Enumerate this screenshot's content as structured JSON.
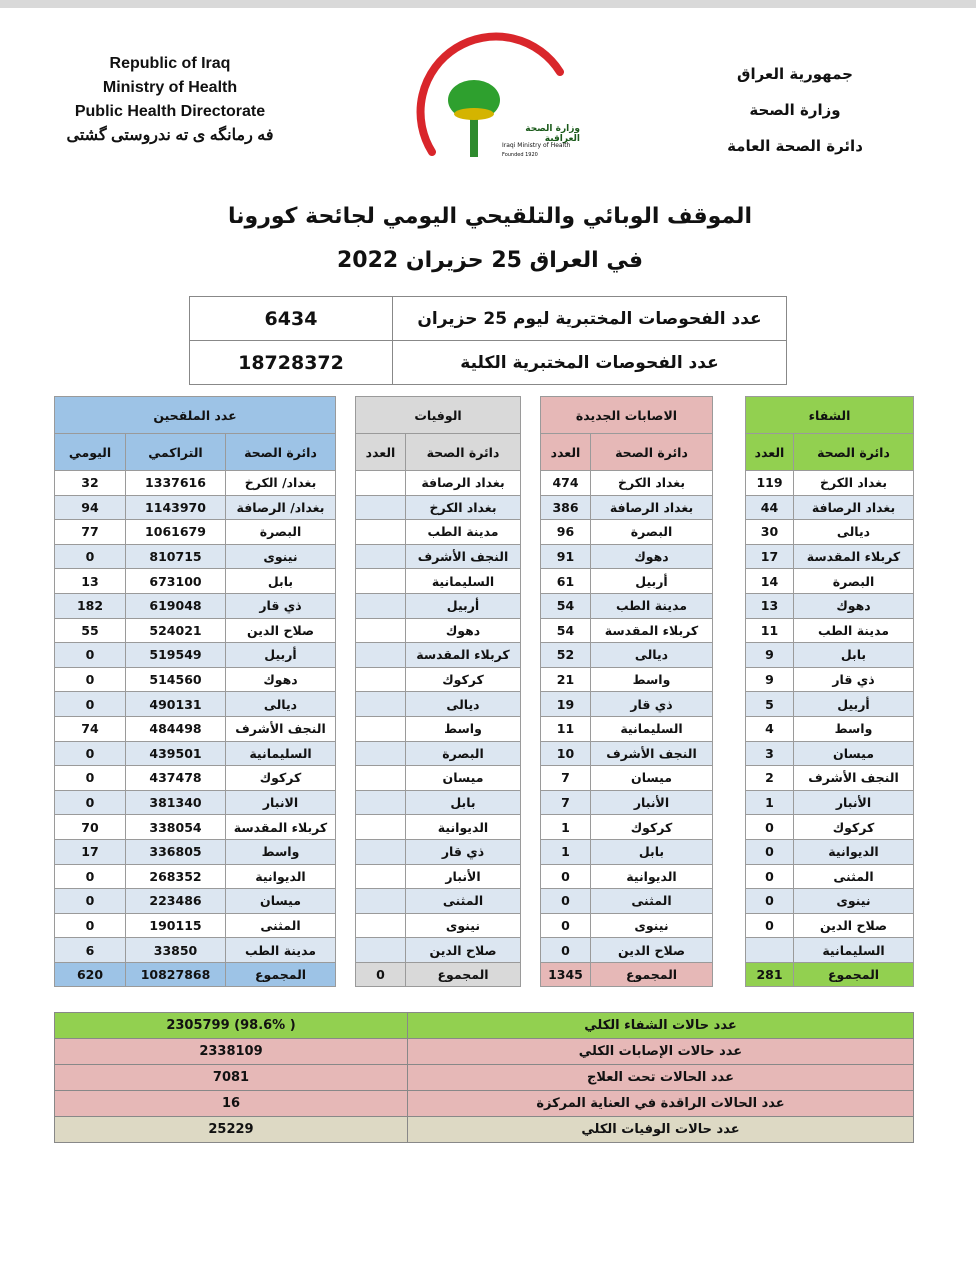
{
  "header": {
    "left": [
      "Republic of Iraq",
      "Ministry of Health",
      "Public Health Directorate",
      "فه رمانگه ى ته ندروستى گشتى"
    ],
    "right": [
      "جمهورية العراق",
      "وزارة الصحة",
      "دائرة الصحة العامة"
    ],
    "logo_text": "وزارة الصحة العراقية",
    "logo_sub": "Iraqi Ministry of Health",
    "logo_founded": "Founded 1920",
    "title1": "الموقف الوبائي والتلقيحي اليومي لجائحة كورونا",
    "title2": "في العراق  25 حزيران 2022"
  },
  "tests": [
    {
      "label": "عدد الفحوصات المختبرية  ليوم 25  حزيران",
      "value": "6434"
    },
    {
      "label": "عدد الفحوصات المختبرية الكلية",
      "value": "18728372"
    }
  ],
  "sections": {
    "vaccinated": "عدد الملقحين",
    "deaths": "الوفيات",
    "cases": "الاصابات الجديدة",
    "recovery": "الشفاء"
  },
  "cols": {
    "dept": "دائرة الصحة",
    "count": "العدد",
    "cumulative": "التراكمي",
    "daily": "اليومي"
  },
  "rows": [
    [
      "بغداد الكرخ",
      "119",
      "بغداد الكرخ",
      "474",
      "بغداد الرصافة",
      "",
      "بغداد/ الكرخ",
      "1337616",
      "32"
    ],
    [
      "بغداد الرصافة",
      "44",
      "بغداد الرصافة",
      "386",
      "بغداد الكرخ",
      "",
      "بغداد/ الرصافة",
      "1143970",
      "94"
    ],
    [
      "ديالى",
      "30",
      "البصرة",
      "96",
      "مدينة الطب",
      "",
      "البصرة",
      "1061679",
      "77"
    ],
    [
      "كربلاء المقدسة",
      "17",
      "دهوك",
      "91",
      "النجف الأشرف",
      "",
      "نينوى",
      "810715",
      "0"
    ],
    [
      "البصرة",
      "14",
      "أربيل",
      "61",
      "السليمانية",
      "",
      "بابل",
      "673100",
      "13"
    ],
    [
      "دهوك",
      "13",
      "مدينة الطب",
      "54",
      "أربيل",
      "",
      "ذي قار",
      "619048",
      "182"
    ],
    [
      "مدينة الطب",
      "11",
      "كربلاء المقدسة",
      "54",
      "دهوك",
      "",
      "صلاح الدين",
      "524021",
      "55"
    ],
    [
      "بابل",
      "9",
      "ديالى",
      "52",
      "كربلاء المقدسة",
      "",
      "أربيل",
      "519549",
      "0"
    ],
    [
      "ذي قار",
      "9",
      "واسط",
      "21",
      "كركوك",
      "",
      "دهوك",
      "514560",
      "0"
    ],
    [
      "أربيل",
      "5",
      "ذي قار",
      "19",
      "ديالى",
      "",
      "ديالى",
      "490131",
      "0"
    ],
    [
      "واسط",
      "4",
      "السليمانية",
      "11",
      "واسط",
      "",
      "النجف الأشرف",
      "484498",
      "74"
    ],
    [
      "ميسان",
      "3",
      "النجف الأشرف",
      "10",
      "البصرة",
      "",
      "السليمانية",
      "439501",
      "0"
    ],
    [
      "النجف الأشرف",
      "2",
      "ميسان",
      "7",
      "ميسان",
      "",
      "كركوك",
      "437478",
      "0"
    ],
    [
      "الأنبار",
      "1",
      "الأنبار",
      "7",
      "بابل",
      "",
      "الانبار",
      "381340",
      "0"
    ],
    [
      "كركوك",
      "0",
      "كركوك",
      "1",
      "الديوانية",
      "",
      "كربلاء المقدسة",
      "338054",
      "70"
    ],
    [
      "الديوانية",
      "0",
      "بابل",
      "1",
      "ذي قار",
      "",
      "واسط",
      "336805",
      "17"
    ],
    [
      "المثنى",
      "0",
      "الديوانية",
      "0",
      "الأنبار",
      "",
      "الديوانية",
      "268352",
      "0"
    ],
    [
      "نينوى",
      "0",
      "المثنى",
      "0",
      "المثنى",
      "",
      "ميسان",
      "223486",
      "0"
    ],
    [
      "صلاح الدين",
      "0",
      "نينوى",
      "0",
      "نينوى",
      "",
      "المثنى",
      "190115",
      "0"
    ],
    [
      "السليمانية",
      "",
      "صلاح الدين",
      "0",
      "صلاح الدين",
      "",
      "مدينة الطب",
      "33850",
      "6"
    ]
  ],
  "totals": {
    "label": "المجموع",
    "recovery": "281",
    "cases": "1345",
    "deaths": "0",
    "vacc_cum": "10827868",
    "vacc_daily": "620"
  },
  "summary": [
    {
      "label": "عدد حالات الشفاء الكلي",
      "value": "( 98.6%)  2305799",
      "color": "#92d050"
    },
    {
      "label": "عدد حالات الإصابات الكلي",
      "value": "2338109",
      "color": "#e6b8b7"
    },
    {
      "label": "عدد الحالات تحت العلاج",
      "value": "7081",
      "color": "#e6b8b7"
    },
    {
      "label": "عدد الحالات الراقدة في العناية المركزة",
      "value": "16",
      "color": "#e6b8b7"
    },
    {
      "label": "عدد حالات الوفيات الكلي",
      "value": "25229",
      "color": "#ddd9c4"
    }
  ]
}
